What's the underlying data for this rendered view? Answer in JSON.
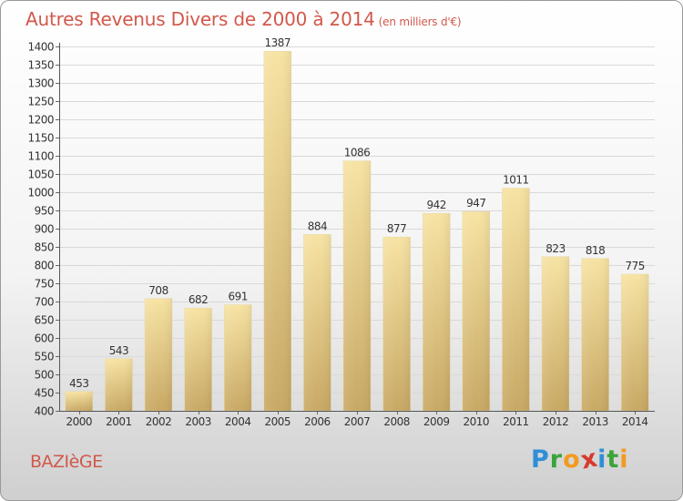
{
  "title": "Autres Revenus Divers de 2000 à 2014",
  "subtitle": "(en milliers d'€)",
  "commune": "BAZIèGE",
  "logo": {
    "letters": [
      "P",
      "r",
      "o",
      "x",
      "i",
      "t",
      "i"
    ],
    "colors": [
      "#2e8fd8",
      "#3aa43a",
      "#f29a1f",
      "#d83a2e",
      "#2e8fd8",
      "#3aa43a",
      "#f29a1f"
    ]
  },
  "colors": {
    "title": "#d2584b",
    "bar_top": "#f7e3a3",
    "bar_bottom": "#c8a864",
    "grid": "#d9d9d9"
  },
  "chart_data": {
    "type": "bar",
    "title": "Autres Revenus Divers de 2000 à 2014",
    "subtitle": "(en milliers d'€)",
    "categories": [
      "2000",
      "2001",
      "2002",
      "2003",
      "2004",
      "2005",
      "2006",
      "2007",
      "2008",
      "2009",
      "2010",
      "2011",
      "2012",
      "2013",
      "2014"
    ],
    "values": [
      453,
      543,
      708,
      682,
      691,
      1387,
      884,
      1086,
      877,
      942,
      947,
      1011,
      823,
      818,
      775
    ],
    "ylim": [
      400,
      1400
    ],
    "yticks": [
      400,
      450,
      500,
      550,
      600,
      650,
      700,
      750,
      800,
      850,
      900,
      950,
      1000,
      1050,
      1100,
      1150,
      1200,
      1250,
      1300,
      1350,
      1400
    ],
    "grid": true,
    "xlabel": "",
    "ylabel": ""
  }
}
